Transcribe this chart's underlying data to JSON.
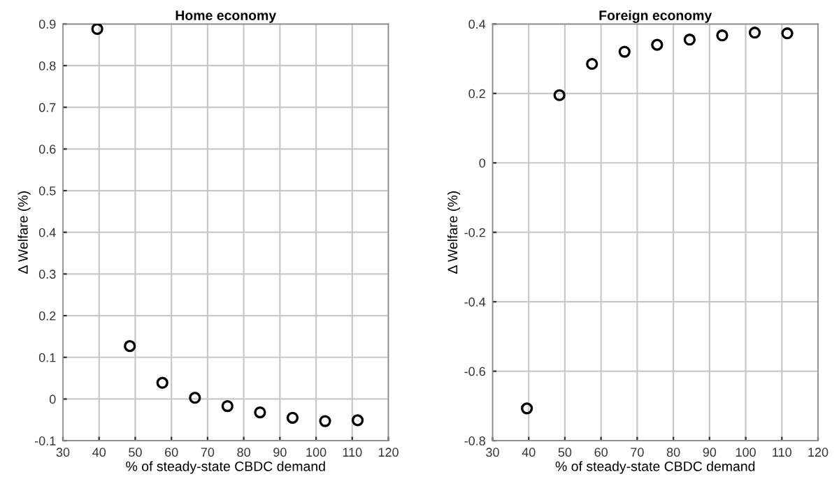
{
  "chart_data": [
    {
      "type": "scatter",
      "title": "Home economy",
      "xlabel": "% of steady-state CBDC demand",
      "ylabel": "Δ Welfare (%)",
      "x": [
        39.5,
        48.5,
        57.5,
        66.5,
        75.5,
        84.5,
        93.5,
        102.5,
        111.5
      ],
      "series": [
        {
          "color": "#000000",
          "values": [
            0.888,
            0.127,
            0.039,
            0.003,
            -0.017,
            -0.032,
            -0.045,
            -0.053,
            -0.051
          ]
        }
      ],
      "xlim": [
        30,
        120
      ],
      "xticks": [
        30,
        40,
        50,
        60,
        70,
        80,
        90,
        100,
        110,
        120
      ],
      "ylim": [
        -0.1,
        0.9
      ],
      "yticks": [
        -0.1,
        0,
        0.1,
        0.2,
        0.3,
        0.4,
        0.5,
        0.6,
        0.7,
        0.8,
        0.9
      ],
      "grid": true,
      "marker": "circle"
    },
    {
      "type": "scatter",
      "title": "Foreign economy",
      "xlabel": "% of steady-state CBDC demand",
      "ylabel": "Δ Welfare (%)",
      "x": [
        39.5,
        48.5,
        57.5,
        66.5,
        75.5,
        84.5,
        93.5,
        102.5,
        111.5
      ],
      "series": [
        {
          "color": "#000000",
          "values": [
            -0.707,
            0.195,
            0.285,
            0.32,
            0.34,
            0.355,
            0.367,
            0.375,
            0.373
          ]
        }
      ],
      "xlim": [
        30,
        120
      ],
      "xticks": [
        30,
        40,
        50,
        60,
        70,
        80,
        90,
        100,
        110,
        120
      ],
      "ylim": [
        -0.8,
        0.4
      ],
      "yticks": [
        -0.8,
        -0.6,
        -0.4,
        -0.2,
        0,
        0.2,
        0.4
      ],
      "grid": true,
      "marker": "circle"
    }
  ]
}
